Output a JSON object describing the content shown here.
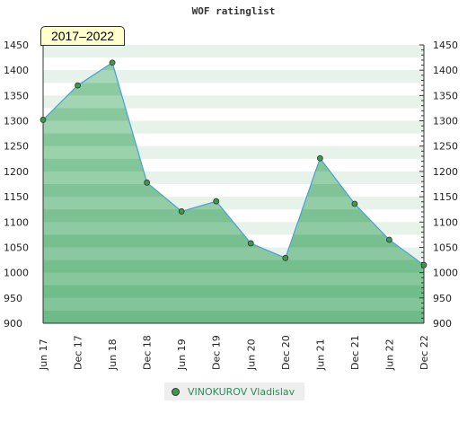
{
  "chart_data": {
    "type": "area",
    "title": "WOF ratinglist",
    "period": "2017–2022",
    "categories": [
      "Jun 17",
      "Dec 17",
      "Jun 18",
      "Dec 18",
      "Jun 19",
      "Dec 19",
      "Jun 20",
      "Dec 20",
      "Jun 21",
      "Dec 21",
      "Jun 22",
      "Dec 22"
    ],
    "series": [
      {
        "name": "VINOKUROV Vladislav",
        "values": [
          1302,
          1370,
          1415,
          1178,
          1121,
          1141,
          1058,
          1029,
          1226,
          1136,
          1065,
          1015
        ]
      }
    ],
    "yticks": [
      900,
      950,
      1000,
      1050,
      1100,
      1150,
      1200,
      1250,
      1300,
      1350,
      1400,
      1450
    ],
    "ylim": [
      900,
      1450
    ],
    "grid": true,
    "legend_position": "bottom",
    "colors": {
      "line": "#4a9fd8",
      "fill": "#6dbf8a",
      "point": "#3a9a4a"
    }
  }
}
